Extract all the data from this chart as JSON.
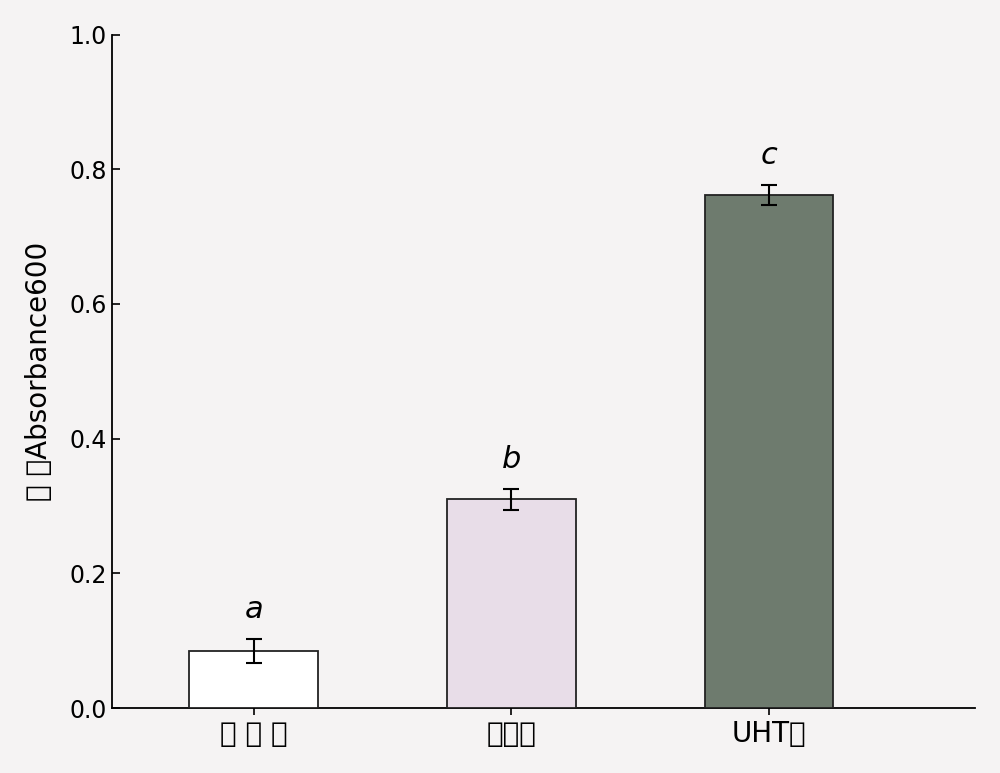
{
  "categories": [
    "原 料 乳",
    "巴氏乳",
    "UHT乳"
  ],
  "values": [
    0.085,
    0.31,
    0.762
  ],
  "errors": [
    0.018,
    0.016,
    0.015
  ],
  "bar_colors": [
    "#ffffff",
    "#e8dde8",
    "#6e7b6e"
  ],
  "bar_edgecolors": [
    "#222222",
    "#222222",
    "#222222"
  ],
  "sig_labels": [
    "a",
    "b",
    "c"
  ],
  "ylabel": "浊 度Absorbance600",
  "ylim": [
    0.0,
    1.0
  ],
  "yticks": [
    0.0,
    0.2,
    0.4,
    0.6,
    0.8,
    1.0
  ],
  "bar_width": 0.5,
  "background_color": "#f5f3f3",
  "ylabel_fontsize": 20,
  "tick_fontsize": 17,
  "sig_fontsize": 22,
  "xtick_fontsize": 20
}
